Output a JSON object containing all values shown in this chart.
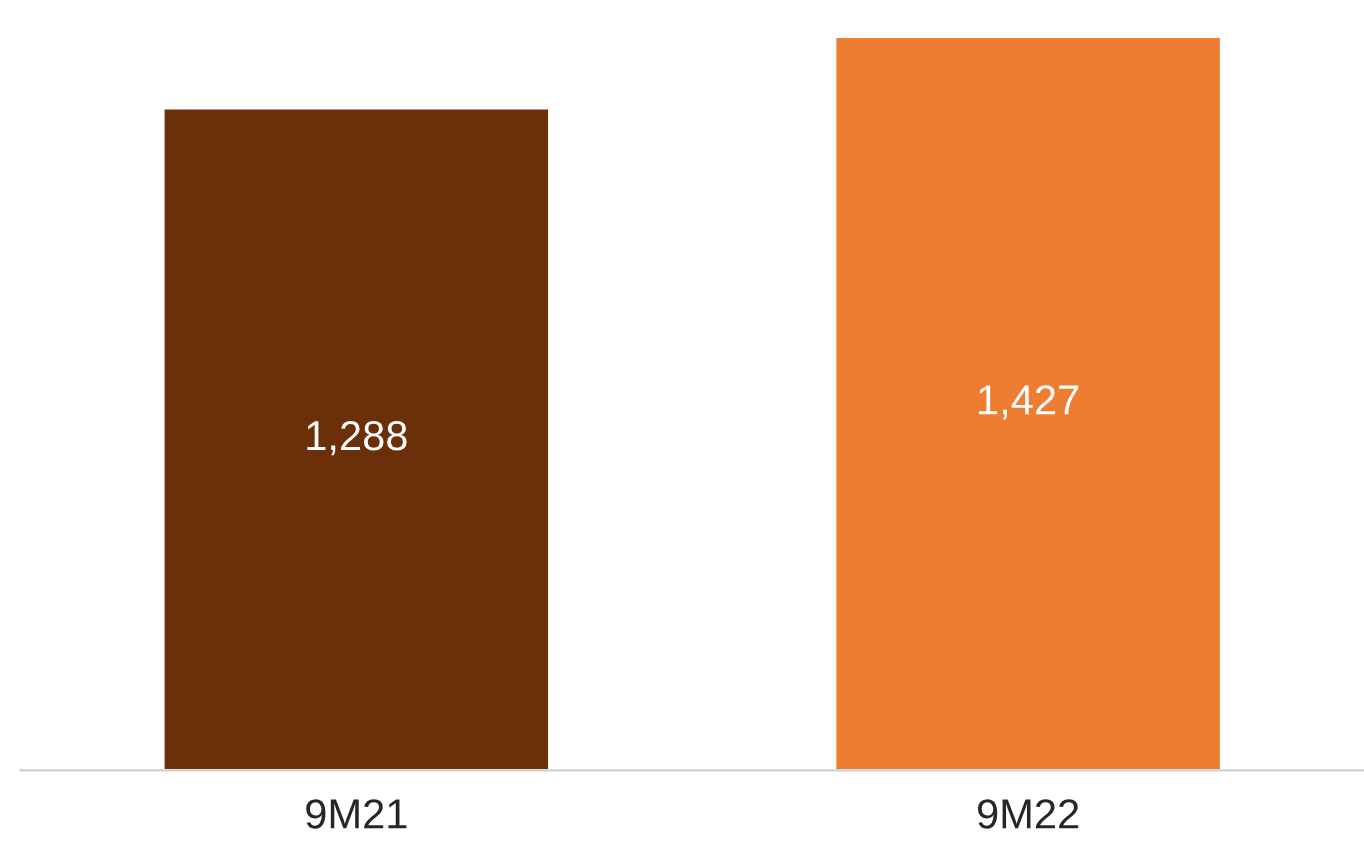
{
  "chart_data": {
    "type": "bar",
    "categories": [
      "9M21",
      "9M22"
    ],
    "values": [
      1288,
      1427
    ],
    "colors": [
      "#6b300a",
      "#ed7d31"
    ],
    "value_labels": [
      "1,288",
      "1,427"
    ],
    "tick_labels": "x",
    "grid": false,
    "legend": false
  }
}
